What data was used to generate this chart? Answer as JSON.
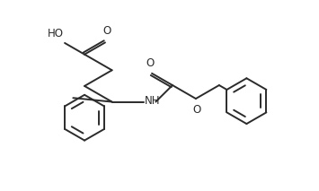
{
  "background": "#ffffff",
  "line_color": "#2b2b2b",
  "line_width": 1.4,
  "font_size": 8.5,
  "figsize": [
    3.55,
    2.13
  ],
  "dpi": 100,
  "xlim": [
    0,
    10
  ],
  "ylim": [
    0,
    6
  ]
}
